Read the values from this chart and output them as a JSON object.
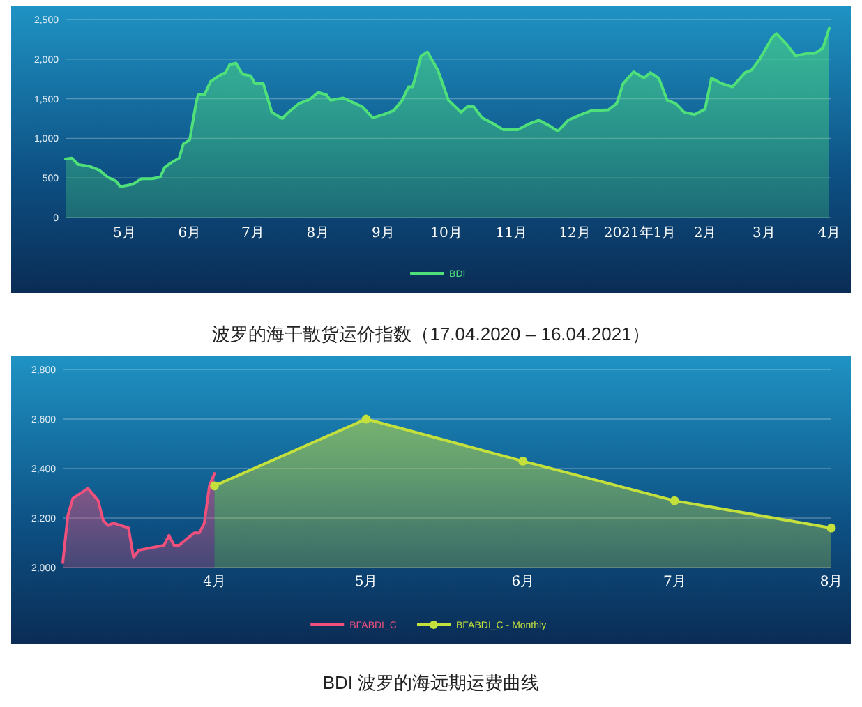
{
  "chart_data": [
    {
      "type": "area",
      "grid": "y",
      "legend": "bottom",
      "xlim": [
        "2020-04-17",
        "2021-04-16"
      ],
      "xticks": [
        {
          "value": "2020-05-15",
          "label": "5月"
        },
        {
          "value": "2020-06-15",
          "label": "6月"
        },
        {
          "value": "2020-07-15",
          "label": "7月"
        },
        {
          "value": "2020-08-15",
          "label": "8月"
        },
        {
          "value": "2020-09-15",
          "label": "9月"
        },
        {
          "value": "2020-10-15",
          "label": "10月"
        },
        {
          "value": "2020-11-15",
          "label": "11月"
        },
        {
          "value": "2020-12-15",
          "label": "12月"
        },
        {
          "value": "2021-01-15",
          "label": "2021年1月"
        },
        {
          "value": "2021-02-15",
          "label": "2月"
        },
        {
          "value": "2021-03-15",
          "label": "3月"
        },
        {
          "value": "2021-04-15",
          "label": "4月"
        }
      ],
      "ylim": [
        0,
        2500
      ],
      "yticks": [
        0,
        500,
        {
          "value": 1000,
          "label": "1,000"
        },
        {
          "value": 1500,
          "label": "1,500"
        },
        {
          "value": 2000,
          "label": "2,000"
        },
        {
          "value": 2500,
          "label": "2,500"
        }
      ],
      "series": [
        {
          "name": "BDI",
          "color": "#4fe07a",
          "x": [
            "2020-04-17",
            "2020-04-20",
            "2020-04-23",
            "2020-04-28",
            "2020-05-03",
            "2020-05-07",
            "2020-05-11",
            "2020-05-13",
            "2020-05-19",
            "2020-05-23",
            "2020-05-28",
            "2020-06-01",
            "2020-06-03",
            "2020-06-06",
            "2020-06-10",
            "2020-06-12",
            "2020-06-15",
            "2020-06-18",
            "2020-06-19",
            "2020-06-22",
            "2020-06-25",
            "2020-06-29",
            "2020-07-02",
            "2020-07-04",
            "2020-07-07",
            "2020-07-10",
            "2020-07-14",
            "2020-07-16",
            "2020-07-20",
            "2020-07-24",
            "2020-07-29",
            "2020-08-01",
            "2020-08-06",
            "2020-08-11",
            "2020-08-15",
            "2020-08-19",
            "2020-08-21",
            "2020-08-27",
            "2020-08-31",
            "2020-09-05",
            "2020-09-10",
            "2020-09-15",
            "2020-09-20",
            "2020-09-24",
            "2020-09-27",
            "2020-09-29",
            "2020-10-03",
            "2020-10-06",
            "2020-10-11",
            "2020-10-16",
            "2020-10-22",
            "2020-10-25",
            "2020-10-28",
            "2020-11-01",
            "2020-11-06",
            "2020-11-11",
            "2020-11-18",
            "2020-11-23",
            "2020-11-28",
            "2020-12-03",
            "2020-12-07",
            "2020-12-12",
            "2020-12-18",
            "2020-12-23",
            "2020-12-31",
            "2021-01-04",
            "2021-01-07",
            "2021-01-12",
            "2021-01-17",
            "2021-01-20",
            "2021-01-24",
            "2021-01-28",
            "2021-02-01",
            "2021-02-05",
            "2021-02-10",
            "2021-02-15",
            "2021-02-18",
            "2021-02-23",
            "2021-02-28",
            "2021-03-06",
            "2021-03-09",
            "2021-03-13",
            "2021-03-19",
            "2021-03-21",
            "2021-03-26",
            "2021-03-30",
            "2021-04-04",
            "2021-04-08",
            "2021-04-12",
            "2021-04-15"
          ],
          "values": [
            740,
            750,
            670,
            650,
            600,
            510,
            460,
            390,
            420,
            490,
            490,
            510,
            630,
            690,
            750,
            930,
            980,
            1440,
            1550,
            1550,
            1720,
            1790,
            1830,
            1930,
            1950,
            1810,
            1790,
            1690,
            1690,
            1330,
            1250,
            1330,
            1440,
            1490,
            1580,
            1550,
            1480,
            1510,
            1460,
            1400,
            1260,
            1300,
            1350,
            1480,
            1650,
            1650,
            2040,
            2090,
            1860,
            1480,
            1330,
            1400,
            1400,
            1260,
            1190,
            1110,
            1110,
            1180,
            1230,
            1160,
            1090,
            1230,
            1300,
            1350,
            1360,
            1440,
            1690,
            1840,
            1760,
            1830,
            1760,
            1480,
            1440,
            1330,
            1300,
            1370,
            1760,
            1690,
            1650,
            1830,
            1860,
            2000,
            2280,
            2320,
            2180,
            2040,
            2070,
            2070,
            2140,
            2390
          ]
        }
      ],
      "annotations": [
        "波罗的海干散货运价指数（17.04.2020 – 16.04.2021）"
      ]
    },
    {
      "type": "area",
      "grid": "y",
      "legend": "bottom",
      "xlim": [
        "2021-03-16",
        "2021-08-15"
      ],
      "xticks": [
        {
          "value": "2021-04-15",
          "label": "4月"
        },
        {
          "value": "2021-05-15",
          "label": "5月"
        },
        {
          "value": "2021-06-15",
          "label": "6月"
        },
        {
          "value": "2021-07-15",
          "label": "7月"
        },
        {
          "value": "2021-08-15",
          "label": "8月"
        }
      ],
      "ylim": [
        2000,
        2800
      ],
      "yticks": [
        {
          "value": 2000,
          "label": "2,000"
        },
        {
          "value": 2200,
          "label": "2,200"
        },
        {
          "value": 2400,
          "label": "2,400"
        },
        {
          "value": 2600,
          "label": "2,600"
        },
        {
          "value": 2800,
          "label": "2,800"
        }
      ],
      "series": [
        {
          "name": "BFABDI_C",
          "color": "#f0507c",
          "x": [
            "2021-03-16",
            "2021-03-17",
            "2021-03-18",
            "2021-03-21",
            "2021-03-23",
            "2021-03-24",
            "2021-03-25",
            "2021-03-26",
            "2021-03-29",
            "2021-03-30",
            "2021-03-31",
            "2021-04-05",
            "2021-04-06",
            "2021-04-07",
            "2021-04-08",
            "2021-04-11",
            "2021-04-12",
            "2021-04-13",
            "2021-04-14",
            "2021-04-15"
          ],
          "values": [
            2020,
            2210,
            2280,
            2320,
            2270,
            2190,
            2170,
            2180,
            2160,
            2040,
            2070,
            2090,
            2130,
            2090,
            2090,
            2140,
            2140,
            2180,
            2330,
            2380
          ]
        },
        {
          "name": "BFABDI_C - Monthly",
          "color": "#c4e03c",
          "marker": "circle",
          "x": [
            "2021-04-15",
            "2021-05-15",
            "2021-06-15",
            "2021-07-15",
            "2021-08-15"
          ],
          "values": [
            2330,
            2600,
            2430,
            2270,
            2160
          ]
        }
      ],
      "annotations": [
        "BDI 波罗的海远期运费曲线"
      ]
    }
  ]
}
